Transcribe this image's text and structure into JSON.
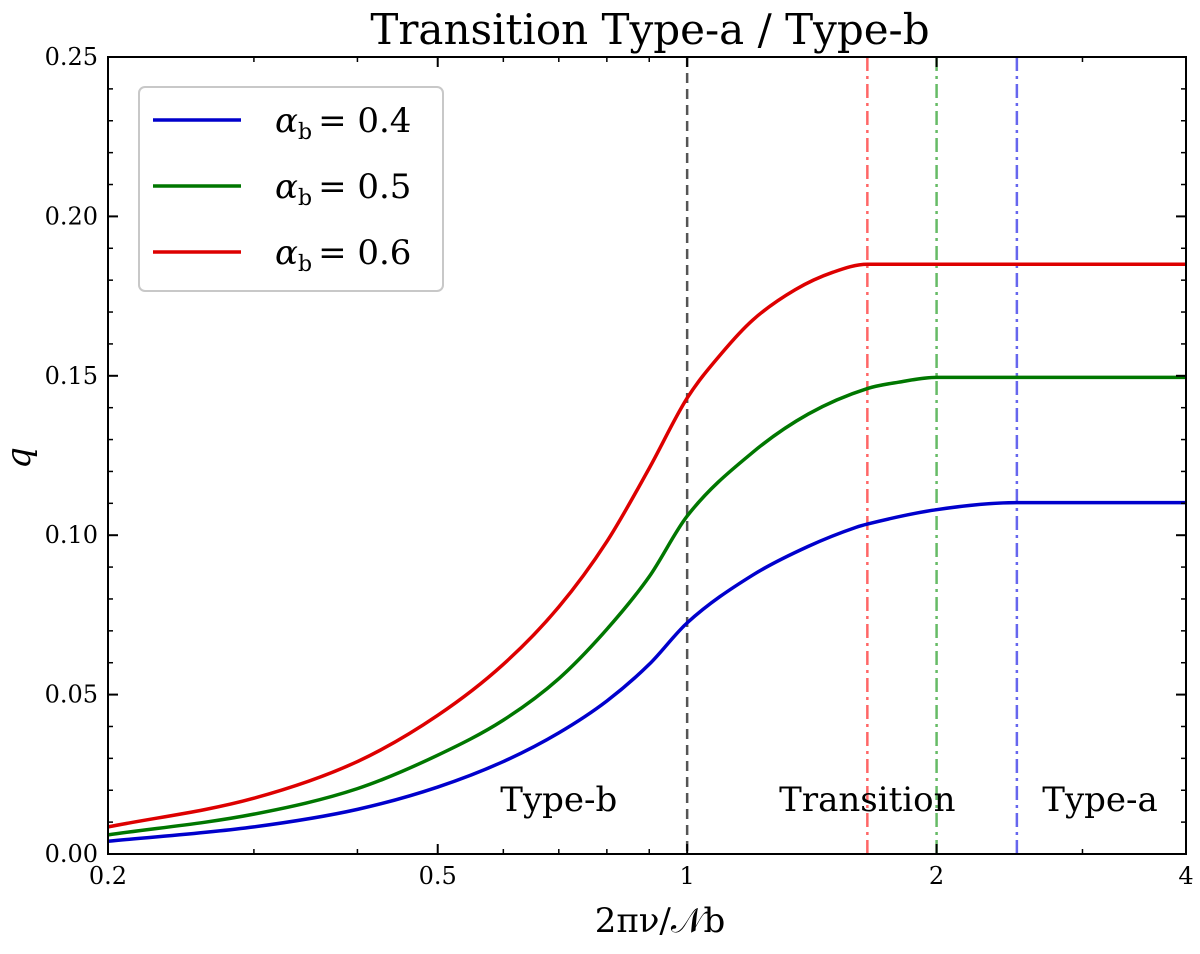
{
  "chart_data": {
    "type": "line",
    "title": "Transition Type-a / Type-b",
    "xlabel": "2πν/𝒩b",
    "ylabel": "q",
    "xscale": "log",
    "xlim": [
      0.2,
      4
    ],
    "ylim": [
      0,
      0.25
    ],
    "xticks": [
      {
        "value": 0.2,
        "label": "0.2"
      },
      {
        "value": 0.5,
        "label": "0.5"
      },
      {
        "value": 1,
        "label": "1"
      },
      {
        "value": 2,
        "label": "2"
      },
      {
        "value": 4,
        "label": "4"
      }
    ],
    "yticks": [
      {
        "value": 0.0,
        "label": "0.00"
      },
      {
        "value": 0.05,
        "label": "0.05"
      },
      {
        "value": 0.1,
        "label": "0.10"
      },
      {
        "value": 0.15,
        "label": "0.15"
      },
      {
        "value": 0.2,
        "label": "0.20"
      },
      {
        "value": 0.25,
        "label": "0.25"
      }
    ],
    "legend_position": "top-left",
    "series": [
      {
        "name": "αb = 0.4",
        "legend_symbol": "α",
        "legend_sub": "b",
        "legend_value": "= 0.4",
        "color": "#0000cc",
        "x": [
          0.2,
          0.3,
          0.4,
          0.5,
          0.6,
          0.7,
          0.8,
          0.9,
          1.0,
          1.2,
          1.4,
          1.6,
          1.65,
          2.0,
          2.5,
          3.0,
          4.0
        ],
        "y": [
          0.004,
          0.0085,
          0.014,
          0.021,
          0.029,
          0.038,
          0.048,
          0.0595,
          0.0725,
          0.0875,
          0.0965,
          0.1025,
          0.1035,
          0.108,
          0.1102,
          0.1102,
          0.1102
        ]
      },
      {
        "name": "αb = 0.5",
        "legend_symbol": "α",
        "legend_sub": "b",
        "legend_value": "= 0.5",
        "color": "#007700",
        "x": [
          0.2,
          0.3,
          0.4,
          0.5,
          0.6,
          0.7,
          0.8,
          0.9,
          1.0,
          1.2,
          1.4,
          1.65,
          1.8,
          2.0,
          2.5,
          3.0,
          4.0
        ],
        "y": [
          0.006,
          0.0125,
          0.0205,
          0.031,
          0.042,
          0.055,
          0.0705,
          0.087,
          0.106,
          0.126,
          0.138,
          0.146,
          0.148,
          0.1495,
          0.1495,
          0.1495,
          0.1495
        ]
      },
      {
        "name": "αb = 0.6",
        "legend_symbol": "α",
        "legend_sub": "b",
        "legend_value": "= 0.6",
        "color": "#dd0000",
        "x": [
          0.2,
          0.3,
          0.4,
          0.5,
          0.6,
          0.7,
          0.8,
          0.9,
          1.0,
          1.1,
          1.2,
          1.35,
          1.5,
          1.65,
          2.0,
          3.0,
          4.0
        ],
        "y": [
          0.0085,
          0.0175,
          0.029,
          0.0435,
          0.0595,
          0.0775,
          0.098,
          0.121,
          0.143,
          0.157,
          0.1675,
          0.177,
          0.1825,
          0.185,
          0.185,
          0.185,
          0.185
        ]
      }
    ],
    "vlines": [
      {
        "x": 1.0,
        "color": "#555555",
        "style": "dashed"
      },
      {
        "x": 1.65,
        "color": "#ff6666",
        "style": "dashdot"
      },
      {
        "x": 2.0,
        "color": "#66bb66",
        "style": "dashdot"
      },
      {
        "x": 2.5,
        "color": "#6666ee",
        "style": "dashdot"
      }
    ],
    "annotations": [
      {
        "text": "Type-b",
        "x": 0.7,
        "y": 0.0135
      },
      {
        "text": "Transition",
        "x": 1.65,
        "y": 0.0135
      },
      {
        "text": "Type-a",
        "x": 3.15,
        "y": 0.0135
      }
    ]
  }
}
